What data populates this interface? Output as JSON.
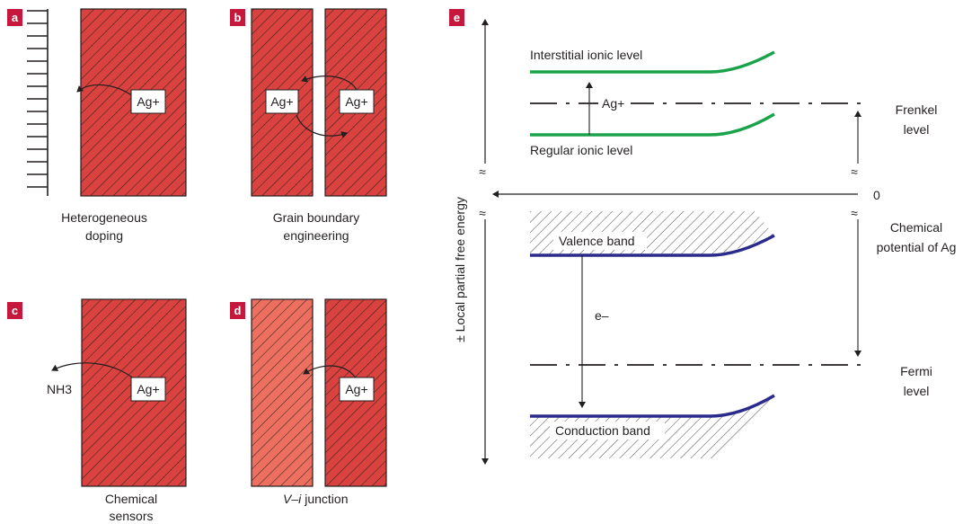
{
  "colors": {
    "badge": "#c6173d",
    "crystal": "#d9423e",
    "crystal_light": "#ec6f5f",
    "green_level": "#1aa34a",
    "blue_band": "#2b2b8c",
    "ink": "#231f20"
  },
  "panel_a": {
    "badge": "a",
    "ion": "Ag+",
    "caption_1": "Heterogeneous",
    "caption_2": "doping"
  },
  "panel_b": {
    "badge": "b",
    "ion_left": "Ag+",
    "ion_right": "Ag+",
    "caption_1": "Grain boundary",
    "caption_2": "engineering"
  },
  "panel_c": {
    "badge": "c",
    "ion": "Ag+",
    "molecule": "NH3",
    "caption_1": "Chemical",
    "caption_2": "sensors"
  },
  "panel_d": {
    "badge": "d",
    "ion": "Ag+",
    "caption_italic": "V–i",
    "caption_rest": "junction"
  },
  "panel_e": {
    "badge": "e",
    "y_axis_label": "± Local partial free energy",
    "interstitial": "Interstitial ionic level",
    "regular": "Regular ionic level",
    "ion_transition": "Ag+",
    "frenkel_1": "Frenkel",
    "frenkel_2": "level",
    "zero": "0",
    "chem_pot_1": "Chemical",
    "chem_pot_2": "potential of Ag",
    "valence": "Valence band",
    "electron": "e–",
    "fermi_1": "Fermi",
    "fermi_2": "level",
    "conduction": "Conduction band",
    "break_mark": "≈"
  }
}
